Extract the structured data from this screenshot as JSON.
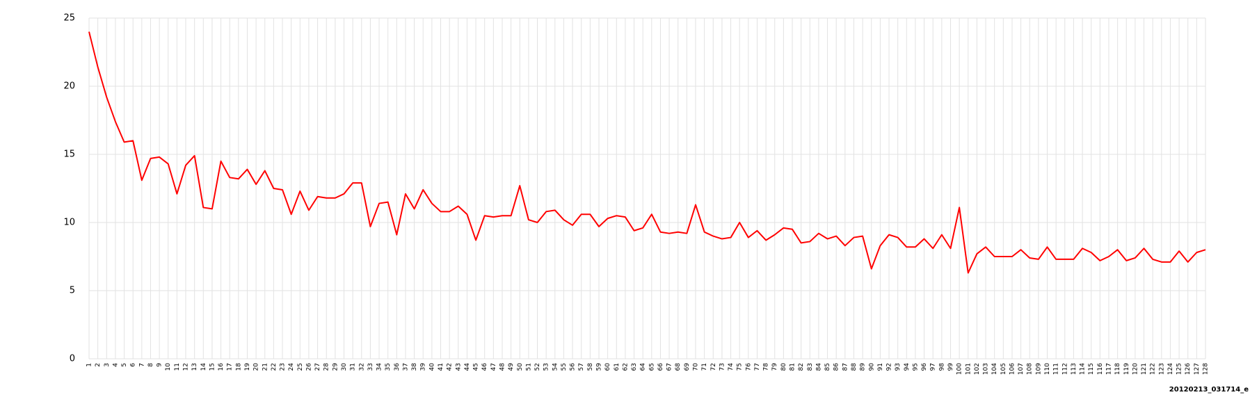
{
  "chart_data": {
    "type": "line",
    "categories": [
      "1",
      "2",
      "3",
      "4",
      "5",
      "6",
      "7",
      "8",
      "9",
      "10",
      "11",
      "12",
      "13",
      "14",
      "15",
      "16",
      "17",
      "18",
      "19",
      "20",
      "21",
      "22",
      "23",
      "24",
      "25",
      "26",
      "27",
      "28",
      "29",
      "30",
      "31",
      "32",
      "33",
      "34",
      "35",
      "36",
      "37",
      "38",
      "39",
      "40",
      "41",
      "42",
      "43",
      "44",
      "45",
      "46",
      "47",
      "48",
      "49",
      "50",
      "51",
      "52",
      "53",
      "54",
      "55",
      "56",
      "57",
      "58",
      "59",
      "60",
      "61",
      "62",
      "63",
      "64",
      "65",
      "66",
      "67",
      "68",
      "69",
      "70",
      "71",
      "72",
      "73",
      "74",
      "75",
      "76",
      "77",
      "78",
      "79",
      "80",
      "81",
      "82",
      "83",
      "84",
      "85",
      "86",
      "87",
      "88",
      "89",
      "90",
      "91",
      "92",
      "93",
      "94",
      "95",
      "96",
      "97",
      "98",
      "99",
      "100",
      "101",
      "102",
      "103",
      "104",
      "105",
      "106",
      "107",
      "108",
      "109",
      "110",
      "111",
      "112",
      "113",
      "114",
      "115",
      "116",
      "117",
      "118",
      "119",
      "120",
      "121",
      "122",
      "123",
      "124",
      "125",
      "126",
      "127",
      "128"
    ],
    "values": [
      24.0,
      21.4,
      19.2,
      17.4,
      15.9,
      16.0,
      13.1,
      14.7,
      14.8,
      14.3,
      12.1,
      14.2,
      14.9,
      11.1,
      11.0,
      14.5,
      13.3,
      13.2,
      13.9,
      12.8,
      13.8,
      12.5,
      12.4,
      10.6,
      12.3,
      10.9,
      11.9,
      11.8,
      11.8,
      12.1,
      12.9,
      12.9,
      9.7,
      11.4,
      11.5,
      9.1,
      12.1,
      11.0,
      12.4,
      11.4,
      10.8,
      10.8,
      11.2,
      10.6,
      8.7,
      10.5,
      10.4,
      10.5,
      10.5,
      12.7,
      10.2,
      10.0,
      10.8,
      10.9,
      10.2,
      9.8,
      10.6,
      10.6,
      9.7,
      10.3,
      10.5,
      10.4,
      9.4,
      9.6,
      10.6,
      9.3,
      9.2,
      9.3,
      9.2,
      11.3,
      9.3,
      9.0,
      8.8,
      8.9,
      10.0,
      8.9,
      9.4,
      8.7,
      9.1,
      9.6,
      9.5,
      8.5,
      8.6,
      9.2,
      8.8,
      9.0,
      8.3,
      8.9,
      9.0,
      6.6,
      8.3,
      9.1,
      8.9,
      8.2,
      8.2,
      8.8,
      8.1,
      9.1,
      8.1,
      11.1,
      6.3,
      7.7,
      8.2,
      7.5,
      7.5,
      7.5,
      8.0,
      7.4,
      7.3,
      8.2,
      7.3,
      7.3,
      7.3,
      8.1,
      7.8,
      7.2,
      7.5,
      8.0,
      7.2,
      7.4,
      8.1,
      7.3,
      7.1,
      7.1,
      7.9,
      7.1,
      7.8,
      8.0
    ],
    "color": "#ff0000",
    "ylim": [
      0,
      25
    ],
    "yticks": [
      0,
      5,
      10,
      15,
      20,
      25
    ],
    "grid": true,
    "footer": "20120213_031714_e"
  }
}
